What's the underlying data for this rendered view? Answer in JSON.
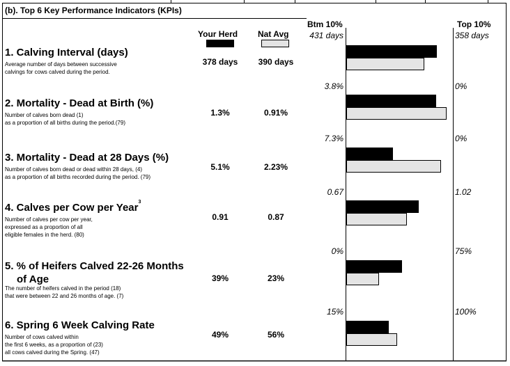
{
  "section": {
    "title": "(b). Top 6 Key Performance Indicators (KPIs)"
  },
  "headers": {
    "your_herd": "Your Herd",
    "nat_avg": "Nat Avg",
    "btm": "Btm 10%",
    "top": "Top 10%",
    "herd_color": "#000000",
    "nat_color": "#e4e4e4"
  },
  "kpis": [
    {
      "title": "1. Calving Interval (days)",
      "desc": [
        "Average number of days between successive",
        "calvings for cows calved during the period."
      ],
      "herd": "378 days",
      "nat": "390 days",
      "btm_label": "431 days",
      "top_label": "358 days",
      "herd_fraction": 0.85,
      "nat_fraction": 0.73
    },
    {
      "title": "2. Mortality - Dead at Birth (%)",
      "desc": [
        "Number of calves born dead (1)",
        "as a proportion of all births during the period.(79)"
      ],
      "herd": "1.3%",
      "nat": "0.91%",
      "btm_label": "3.8%",
      "top_label": "0%",
      "herd_fraction": 0.84,
      "nat_fraction": 0.94
    },
    {
      "title": "3. Mortality - Dead at 28 Days (%)",
      "desc": [
        "Number of calves born dead or dead within 28 days, (4)",
        "as a proportion of all births recorded during the period. (79)"
      ],
      "herd": "5.1%",
      "nat": "2.23%",
      "btm_label": "7.3%",
      "top_label": "0%",
      "herd_fraction": 0.44,
      "nat_fraction": 0.89
    },
    {
      "title": "4. Calves per Cow per Year",
      "title_sup": "3",
      "desc": [
        "Number of calves per cow per year,",
        "expressed as a proportion of all",
        "eligible females in the herd. (80)"
      ],
      "herd": "0.91",
      "nat": "0.87",
      "btm_label": "0.67",
      "top_label": "1.02",
      "herd_fraction": 0.68,
      "nat_fraction": 0.57
    },
    {
      "title": "5. % of Heifers Calved 22-26 Months",
      "title_line2": "of Age",
      "desc": [
        "The number of heifers calved in the period  (18)",
        "that were between 22 and 26 months of age.  (7)"
      ],
      "herd": "39%",
      "nat": "23%",
      "btm_label": "0%",
      "top_label": "75%",
      "herd_fraction": 0.52,
      "nat_fraction": 0.31
    },
    {
      "title": "6. Spring 6 Week Calving Rate",
      "desc": [
        "Number of cows calved within",
        "the first 6 weeks, as a proportion of  (23)",
        "all cows calved during the Spring.  (47)"
      ],
      "herd": "49%",
      "nat": "56%",
      "btm_label": "15%",
      "top_label": "100%",
      "herd_fraction": 0.4,
      "nat_fraction": 0.48
    }
  ]
}
